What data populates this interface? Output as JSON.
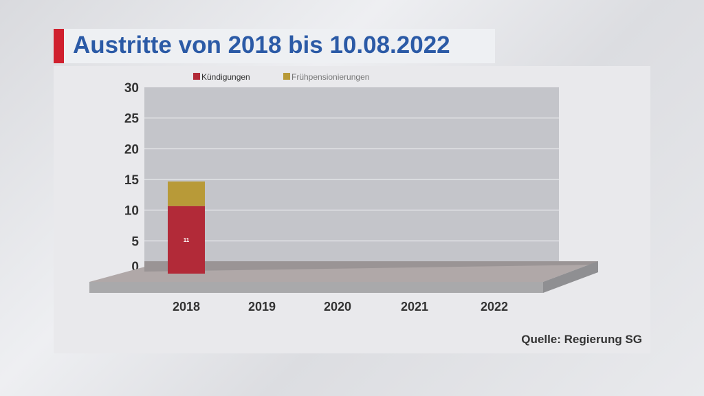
{
  "title": "Austritte von 2018 bis 10.08.2022",
  "source": "Quelle: Regierung SG",
  "chart_data": {
    "type": "bar",
    "stacked": true,
    "title": "Austritte von 2018 bis 10.08.2022",
    "categories": [
      "2018",
      "2019",
      "2020",
      "2021",
      "2022"
    ],
    "series": [
      {
        "name": "Kündigungen",
        "color": "#b22a38",
        "values": [
          11,
          null,
          null,
          null,
          null
        ]
      },
      {
        "name": "Frühpensionierungen",
        "color": "#b89a38",
        "values": [
          4,
          null,
          null,
          null,
          null
        ]
      }
    ],
    "data_labels": [
      "11"
    ],
    "yticks": [
      0,
      5,
      10,
      15,
      20,
      25,
      30
    ],
    "ylim": [
      0,
      30
    ],
    "grid": true,
    "legend": "top"
  }
}
